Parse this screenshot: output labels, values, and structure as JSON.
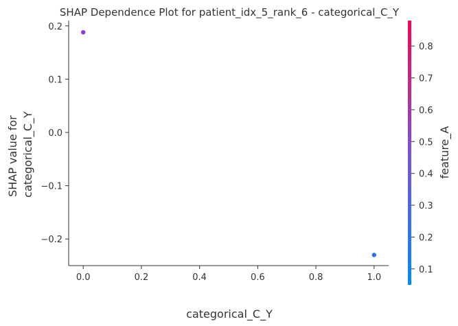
{
  "chart_data": {
    "type": "scatter",
    "title": "SHAP Dependence Plot for patient_idx_5_rank_6 - categorical_C_Y",
    "xlabel": "categorical_C_Y",
    "ylabel_lines": [
      "SHAP value for",
      "categorical_C_Y"
    ],
    "xlim": [
      -0.05,
      1.05
    ],
    "ylim": [
      -0.25,
      0.21
    ],
    "xticks": [
      0.0,
      0.2,
      0.4,
      0.6,
      0.8,
      1.0
    ],
    "xtick_labels": [
      "0.0",
      "0.2",
      "0.4",
      "0.6",
      "0.8",
      "1.0"
    ],
    "yticks": [
      0.2,
      0.1,
      0.0,
      -0.1,
      -0.2
    ],
    "ytick_labels": [
      "0.2",
      "0.1",
      "0.0",
      "−0.1",
      "−0.2"
    ],
    "points": [
      {
        "x": 0.0,
        "y": 0.188,
        "feature_A": 0.37,
        "color": "#8a40cf"
      },
      {
        "x": 1.0,
        "y": -0.23,
        "feature_A": 0.12,
        "color": "#2f6fe8"
      }
    ],
    "colorbar": {
      "label": "feature_A",
      "range": [
        0.05,
        0.88
      ],
      "ticks": [
        0.1,
        0.2,
        0.3,
        0.4,
        0.5,
        0.6,
        0.7,
        0.8
      ],
      "tick_labels": [
        "0.1",
        "0.2",
        "0.3",
        "0.4",
        "0.5",
        "0.6",
        "0.7",
        "0.8"
      ],
      "color_low": "#008bfb",
      "color_mid": "#7c52d4",
      "color_high": "#ff0052"
    },
    "grid": false,
    "spines": [
      "left",
      "bottom"
    ]
  }
}
